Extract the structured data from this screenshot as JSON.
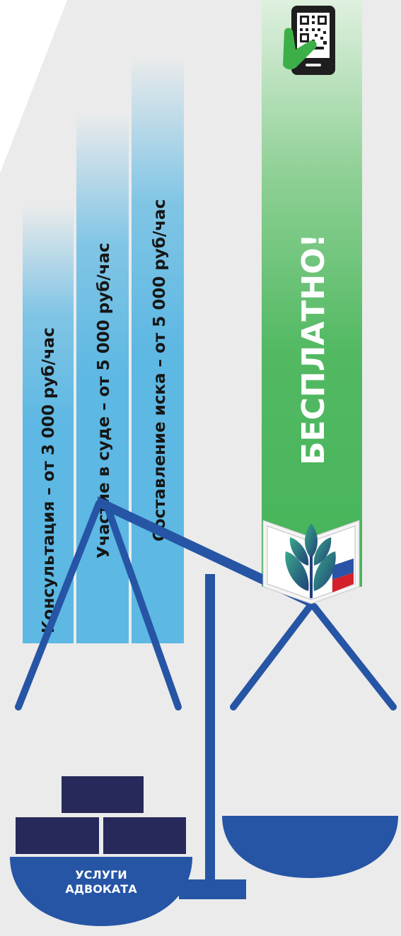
{
  "bars": [
    {
      "text": "Консультация – от 3 000 руб/час"
    },
    {
      "text": "Участие в суде – от 5 000 руб/час"
    },
    {
      "text": "Составление иска – от 5 000 руб/час"
    }
  ],
  "free_label": "БЕСПЛАТНО!",
  "pan_label_line1": "УСЛУГИ",
  "pan_label_line2": "АДВОКАТА",
  "colors": {
    "background": "#ebebeb",
    "bar_blue": "#5db8e3",
    "bar_green": "#46b45a",
    "scale_blue": "#2655a5",
    "weights": "#26295a"
  },
  "icons": [
    "qr-phone-icon",
    "union-logo-icon",
    "scale-icon"
  ]
}
